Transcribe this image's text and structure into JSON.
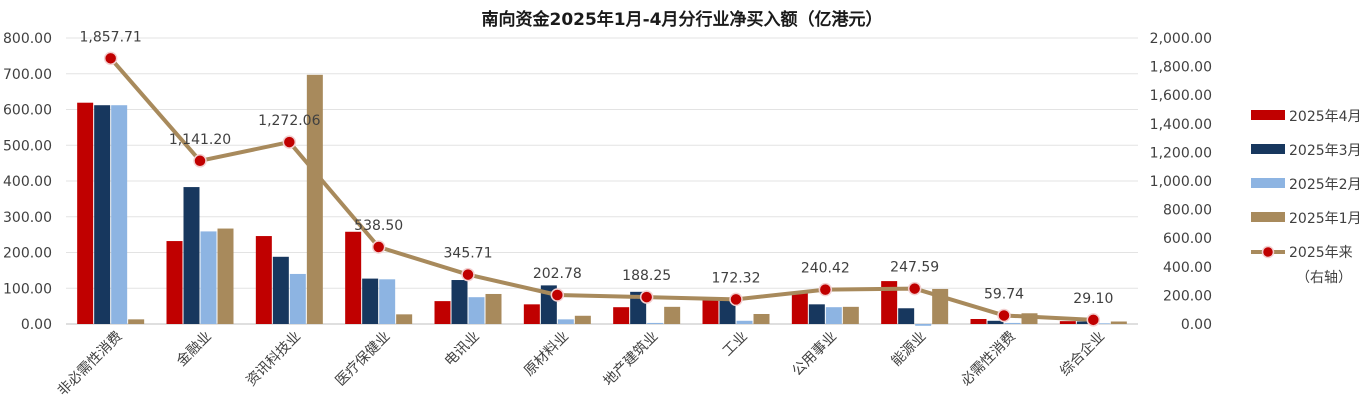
{
  "chart_data": {
    "type": "bar",
    "title": "南向资金2025年1月-4月分行业净买入额（亿港元）",
    "categories": [
      "非必需性消费",
      "金融业",
      "资讯科技业",
      "医疗保健业",
      "电讯业",
      "原材料业",
      "地产建筑业",
      "工业",
      "公用事业",
      "能源业",
      "必需性消费",
      "综合企业"
    ],
    "series": [
      {
        "name": "2025年4月",
        "color": "#c00000",
        "axis": "left",
        "type": "bar",
        "values": [
          619,
          232,
          246,
          258,
          64,
          55,
          47,
          68,
          87,
          120,
          14,
          8
        ]
      },
      {
        "name": "2025年3月",
        "color": "#17375e",
        "axis": "left",
        "type": "bar",
        "values": [
          612,
          383,
          188,
          127,
          123,
          108,
          90,
          66,
          55,
          44,
          9,
          7
        ]
      },
      {
        "name": "2025年2月",
        "color": "#8db4e2",
        "axis": "left",
        "type": "bar",
        "values": [
          612,
          259,
          140,
          125,
          75,
          13,
          3,
          9,
          47,
          -5,
          3,
          2
        ]
      },
      {
        "name": "2025年1月",
        "color": "#a88a5c",
        "axis": "left",
        "type": "bar",
        "values": [
          13,
          267,
          697,
          27,
          84,
          23,
          48,
          28,
          48,
          98,
          30,
          7
        ]
      },
      {
        "name": "2025年来",
        "color": "#a88a5c",
        "marker_color": "#c00000",
        "axis": "right",
        "type": "line",
        "values": [
          1857.71,
          1141.2,
          1272.06,
          538.5,
          345.71,
          202.78,
          188.25,
          172.32,
          240.42,
          247.59,
          59.74,
          29.1
        ]
      }
    ],
    "line_labels": [
      "1,857.71",
      "1,141.20",
      "1,272.06",
      "538.50",
      "345.71",
      "202.78",
      "188.25",
      "172.32",
      "240.42",
      "247.59",
      "59.74",
      "29.10"
    ],
    "left_axis": {
      "min": 0,
      "max": 800,
      "ticks": [
        "0.00",
        "100.00",
        "200.00",
        "300.00",
        "400.00",
        "500.00",
        "600.00",
        "700.00",
        "800.00"
      ]
    },
    "right_axis": {
      "min": 0,
      "max": 2000,
      "ticks": [
        "0.00",
        "200.00",
        "400.00",
        "600.00",
        "800.00",
        "1,000.00",
        "1,200.00",
        "1,400.00",
        "1,600.00",
        "1,800.00",
        "2,000.00"
      ]
    },
    "right_axis_note": "（右轴）",
    "legend_position": "right",
    "grid": true
  }
}
